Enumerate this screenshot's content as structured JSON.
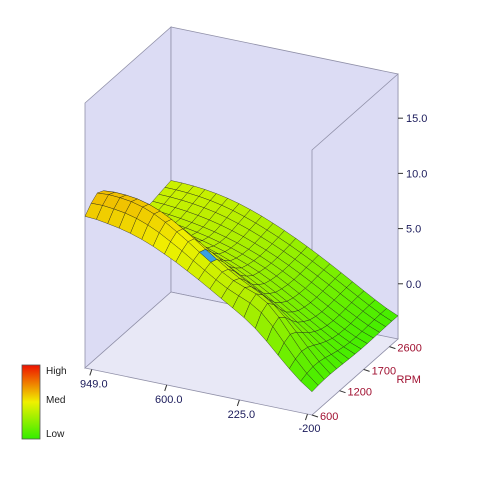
{
  "chart_data": {
    "type": "surface3d",
    "title": "",
    "axes": {
      "x": {
        "ticks": [
          "949.0",
          "600.0",
          "225.0",
          "-200"
        ]
      },
      "y": {
        "label": "RPM",
        "ticks": [
          "600",
          "1200",
          "1700",
          "2600"
        ]
      },
      "z": {
        "ticks": [
          "0.0",
          "5.0",
          "10.0",
          "15.0"
        ],
        "zlim": [
          -5,
          19
        ]
      }
    },
    "legend": {
      "labels": [
        "High",
        "Med",
        "Low"
      ],
      "placement": "bottom-left"
    },
    "grid": true,
    "colors": {
      "low": "#33ee00",
      "med": "#f0f000",
      "high": "#ee1100",
      "wall": "#dcdcf4",
      "grid_line": "#1a1a1a",
      "x_tick": "#1a1a5a",
      "y_tick": "#a01030",
      "z_tick": "#1a1a5a",
      "highlight_cell": "#3aa0e0"
    },
    "grid_size": {
      "cols": 20,
      "rows": 14
    },
    "surface": {
      "comment_free": true,
      "wall_profile_z": [
        18.5,
        18.5,
        18.5,
        18.0,
        17.0,
        15.5,
        13.5,
        11.5,
        10.0,
        8.7,
        7.7,
        7.0,
        6.5,
        6.1,
        5.8,
        5.6,
        5.5,
        5.4,
        5.3,
        5.2,
        5.1
      ],
      "floor_z": [
        -3.2,
        -3.3,
        -3.5,
        -3.6,
        -3.7,
        -3.8,
        -3.9,
        -4.0,
        -4.0,
        -4.0,
        -3.9,
        -3.8,
        -3.7,
        -3.6,
        -3.5,
        -3.4,
        -3.3,
        -3.2,
        -3.1,
        -3.0,
        -2.9
      ]
    }
  }
}
